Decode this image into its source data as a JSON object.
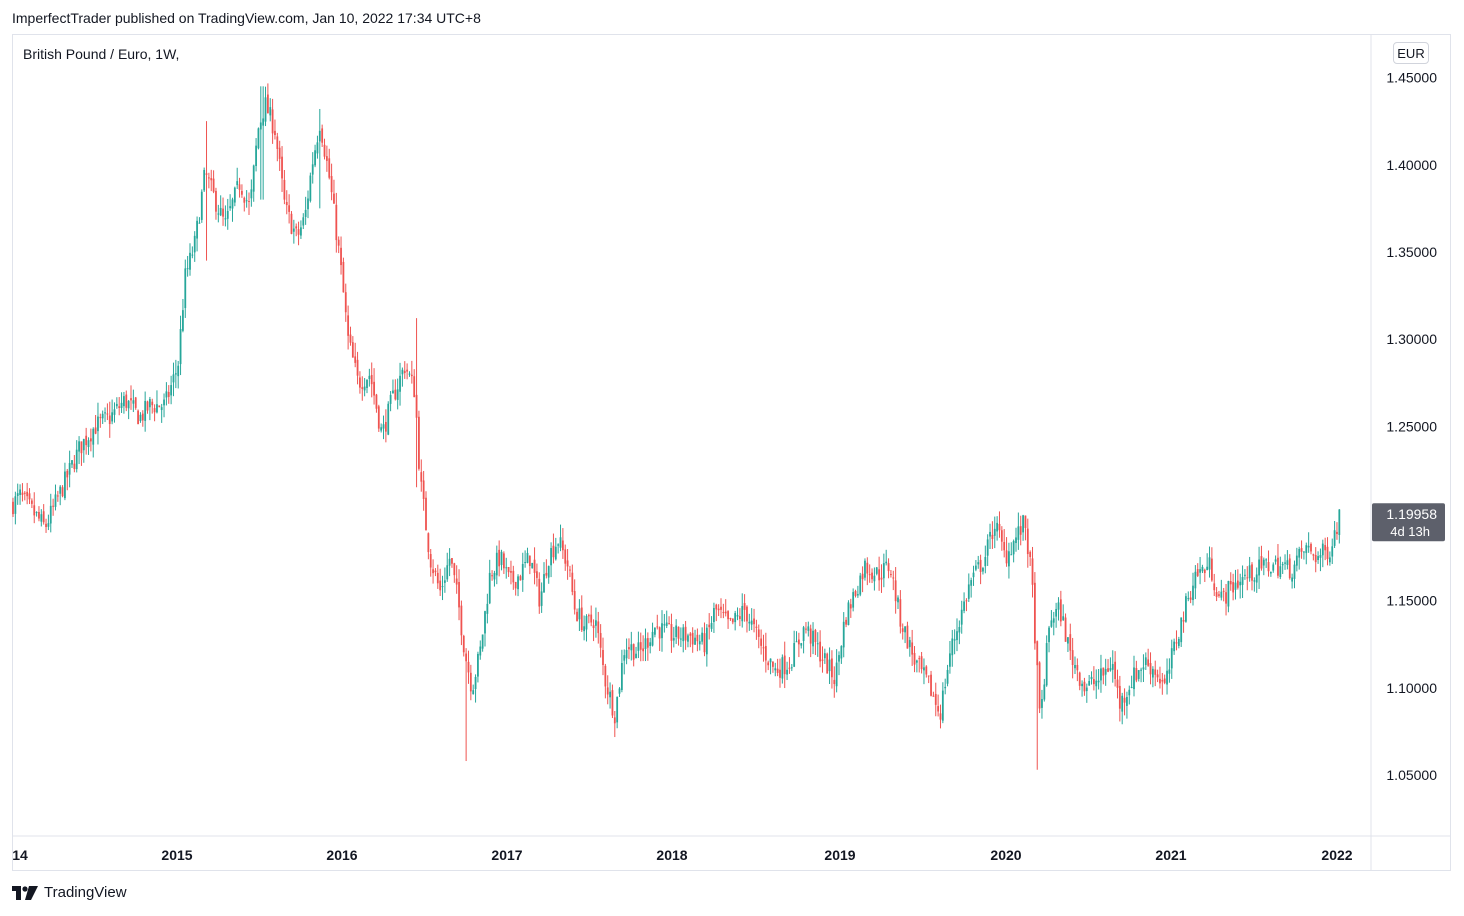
{
  "header": {
    "published_by": "ImperfectTrader published on TradingView.com, Jan 10, 2022 17:34 UTC+8"
  },
  "symbol_label": "British Pound / Euro, 1W,",
  "currency_button": "EUR",
  "footer": {
    "brand": "TradingView"
  },
  "colors": {
    "up": "#26a69a",
    "down": "#ef5350",
    "axis_text": "#131722",
    "grid": "#e0e3eb",
    "price_tag": "#5d606b"
  },
  "chart_data": {
    "type": "candlestick",
    "title": "British Pound / Euro, 1W,",
    "timeframe": "1W",
    "ylim": [
      1.015,
      1.475
    ],
    "y_ticks": [
      "1.45000",
      "1.40000",
      "1.35000",
      "1.30000",
      "1.25000",
      "1.20000",
      "1.15000",
      "1.10000",
      "1.05000"
    ],
    "x_ticks": [
      "14",
      "2015",
      "2016",
      "2017",
      "2018",
      "2019",
      "2020",
      "2021",
      "2022"
    ],
    "last_price": "1.19958",
    "countdown": "4d 13h",
    "approx_weekly_closes": {
      "2014-11": 1.205,
      "2014-12": 1.27,
      "2015-02": 1.35,
      "2015-03": 1.39,
      "2015-07": 1.43,
      "2015-09": 1.365,
      "2015-11": 1.425,
      "2016-01": 1.32,
      "2016-03": 1.27,
      "2016-06": 1.27,
      "2016-07": 1.18,
      "2016-10": 1.1,
      "2016-12": 1.18,
      "2017-03": 1.16,
      "2017-06": 1.135,
      "2017-08": 1.09,
      "2018-02": 1.13,
      "2018-08": 1.11,
      "2018-12": 1.1,
      "2019-03": 1.17,
      "2019-08": 1.085,
      "2019-12": 1.2,
      "2020-03": 1.08,
      "2020-05": 1.12,
      "2020-09": 1.09,
      "2020-12": 1.1,
      "2021-04": 1.16,
      "2021-09": 1.17,
      "2022-01": 1.19958
    }
  }
}
